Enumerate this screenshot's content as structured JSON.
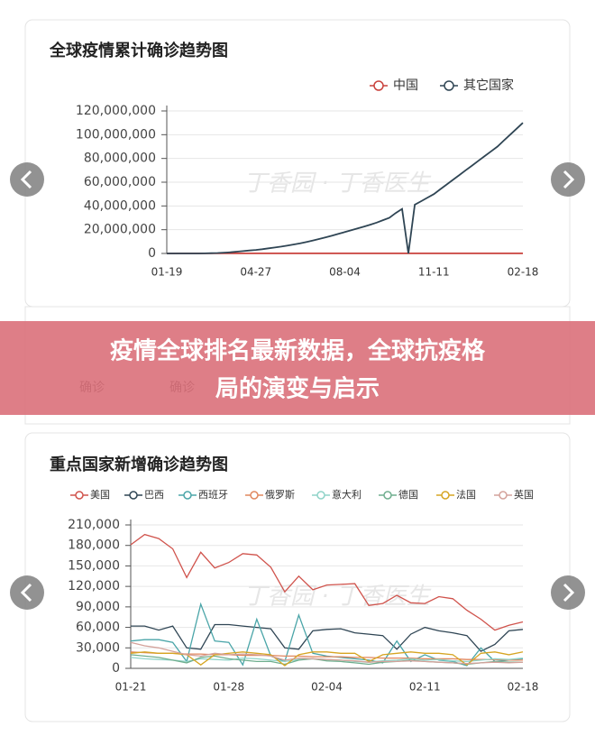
{
  "banner": {
    "title_lines": [
      "疫情全球排名最新数据，全球抗疫格",
      "局的演变与启示"
    ]
  },
  "background_table": {
    "headers": [
      "确诊",
      "确诊"
    ]
  },
  "watermark": "丁香园 · 丁香医生",
  "chart_data": [
    {
      "type": "line",
      "title": "全球疫情累计确诊趋势图",
      "categories": [
        "01-19",
        null,
        null,
        null,
        null,
        null,
        null,
        null,
        null,
        null,
        null,
        null,
        null,
        null,
        "04-27",
        null,
        null,
        null,
        null,
        null,
        null,
        null,
        null,
        null,
        null,
        null,
        null,
        null,
        "08-04",
        null,
        null,
        null,
        null,
        null,
        null,
        null,
        null,
        null,
        null,
        null,
        null,
        null,
        "11-11",
        null,
        null,
        null,
        null,
        null,
        null,
        null,
        null,
        null,
        null,
        null,
        null,
        null,
        "02-18"
      ],
      "series": [
        {
          "name": "中国",
          "color": "#c9413c",
          "values": [
            0,
            10000,
            40000,
            75000,
            80000,
            82000,
            83000,
            84000,
            84000,
            84000,
            84000,
            84000,
            84000,
            84000,
            84000,
            84000,
            84000,
            84000,
            84000,
            84000,
            84000,
            84000,
            84000,
            84000,
            85000,
            85000,
            85000,
            85000,
            88000,
            89000,
            90000,
            90000,
            90000,
            90000,
            91000,
            91000,
            91000,
            91000,
            91000,
            91000,
            91000,
            92000,
            92000,
            92000,
            92000,
            93000,
            94000,
            95000,
            95000,
            96000,
            97000,
            97000,
            98000,
            99000,
            100000,
            100000,
            101000
          ]
        },
        {
          "name": "其它国家",
          "color": "#2f4554",
          "values": [
            0,
            0,
            0,
            0,
            0,
            0,
            100000,
            200000,
            400000,
            700000,
            1000000,
            1500000,
            2000000,
            2500000,
            3000000,
            3600000,
            4300000,
            5000000,
            5800000,
            6700000,
            7600000,
            8600000,
            9700000,
            10900000,
            12200000,
            13600000,
            15000000,
            16500000,
            18000000,
            19500000,
            21000000,
            22600000,
            24200000,
            26000000,
            28000000,
            30000000,
            34000000,
            37500000,
            0,
            41000000,
            44000000,
            47000000,
            50000000,
            54000000,
            58000000,
            62000000,
            66000000,
            70000000,
            74000000,
            78000000,
            82000000,
            86000000,
            90000000,
            95000000,
            100000000,
            105000000,
            110000000
          ]
        }
      ],
      "ylim": [
        0,
        120000000
      ],
      "yticks": [
        0,
        {
          "value": 20000000,
          "label": "20,000,000"
        },
        {
          "value": 40000000,
          "label": "40,000,000"
        },
        {
          "value": 60000000,
          "label": "60,000,000"
        },
        {
          "value": 80000000,
          "label": "80,000,000"
        },
        {
          "value": 100000000,
          "label": "100,000,000"
        },
        {
          "value": 120000000,
          "label": "120,000,000"
        }
      ],
      "grid": true,
      "legend": "top-right"
    },
    {
      "type": "line",
      "title": "重点国家新增确诊趋势图",
      "categories": [
        "01-21",
        null,
        null,
        null,
        null,
        null,
        null,
        "01-28",
        null,
        null,
        null,
        null,
        null,
        null,
        "02-04",
        null,
        null,
        null,
        null,
        null,
        null,
        "02-11",
        null,
        null,
        null,
        null,
        null,
        null,
        "02-18"
      ],
      "series": [
        {
          "name": "美国",
          "color": "#d0534c",
          "values": [
            181000,
            196000,
            190000,
            175000,
            133000,
            170000,
            147000,
            155000,
            168000,
            166000,
            148000,
            112000,
            135000,
            115000,
            122000,
            123000,
            124000,
            92000,
            95000,
            107000,
            96000,
            95000,
            105000,
            102000,
            85000,
            72000,
            56000,
            63000,
            68000
          ]
        },
        {
          "name": "巴西",
          "color": "#2f4554",
          "values": [
            62000,
            62000,
            56000,
            62000,
            30000,
            28000,
            64000,
            64000,
            62000,
            60000,
            58000,
            30000,
            28000,
            55000,
            57000,
            58000,
            52000,
            50000,
            48000,
            28000,
            50000,
            60000,
            55000,
            52000,
            48000,
            25000,
            35000,
            55000,
            57000
          ]
        },
        {
          "name": "西班牙",
          "color": "#4aa5a8",
          "values": [
            40000,
            42000,
            42000,
            38000,
            10000,
            94000,
            40000,
            38000,
            5000,
            72000,
            18000,
            10000,
            78000,
            22000,
            18000,
            16000,
            14000,
            12000,
            8000,
            40000,
            10000,
            20000,
            12000,
            10000,
            4000,
            30000,
            10000,
            12000,
            14000
          ]
        },
        {
          "name": "俄罗斯",
          "color": "#e0875f",
          "values": [
            24000,
            23000,
            22000,
            22000,
            21000,
            21000,
            20000,
            20000,
            19000,
            19000,
            19000,
            18000,
            18000,
            17000,
            17000,
            17000,
            16000,
            16000,
            15000,
            15000,
            15000,
            14000,
            14000,
            14000,
            13000,
            13000,
            13000,
            12000,
            12000
          ]
        },
        {
          "name": "意大利",
          "color": "#8fd3c8",
          "values": [
            16000,
            14000,
            13000,
            12000,
            10000,
            14000,
            13000,
            12000,
            15000,
            14000,
            12000,
            10000,
            13000,
            14000,
            13000,
            12000,
            10000,
            9000,
            11000,
            12000,
            14000,
            12000,
            13000,
            11000,
            10000,
            12000,
            14000,
            13000,
            15000
          ]
        },
        {
          "name": "德国",
          "color": "#6fae8e",
          "values": [
            20000,
            18000,
            16000,
            12000,
            8000,
            16000,
            18000,
            14000,
            12000,
            10000,
            10000,
            6000,
            12000,
            14000,
            11000,
            10000,
            8000,
            6000,
            9000,
            10000,
            12000,
            10000,
            9000,
            8000,
            6000,
            8000,
            10000,
            9000,
            9000
          ]
        },
        {
          "name": "法国",
          "color": "#d6a523",
          "values": [
            22000,
            24000,
            22000,
            22000,
            20000,
            5000,
            20000,
            22000,
            24000,
            22000,
            20000,
            4000,
            20000,
            24000,
            24000,
            22000,
            22000,
            10000,
            20000,
            22000,
            24000,
            22000,
            22000,
            20000,
            5000,
            22000,
            24000,
            20000,
            24000
          ]
        },
        {
          "name": "英国",
          "color": "#d4a29b",
          "values": [
            38000,
            33000,
            30000,
            25000,
            20000,
            18000,
            22000,
            20000,
            21000,
            20000,
            18000,
            12000,
            15000,
            14000,
            13000,
            12000,
            11000,
            9000,
            10000,
            10000,
            11000,
            10000,
            9000,
            8000,
            7000,
            8000,
            9000,
            8000,
            9000
          ]
        }
      ],
      "ylim": [
        0,
        210000
      ],
      "yticks": [
        0,
        {
          "value": 30000,
          "label": "30,000"
        },
        {
          "value": 60000,
          "label": "60,000"
        },
        {
          "value": 90000,
          "label": "90,000"
        },
        {
          "value": 120000,
          "label": "120,000"
        },
        {
          "value": 150000,
          "label": "150,000"
        },
        {
          "value": 180000,
          "label": "180,000"
        },
        {
          "value": 210000,
          "label": "210,000"
        }
      ],
      "grid": true,
      "legend": "top-left"
    }
  ]
}
